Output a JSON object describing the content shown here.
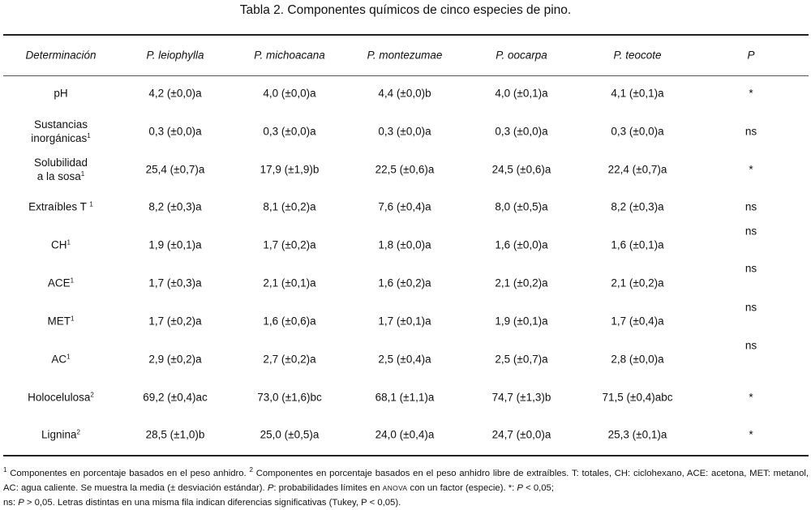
{
  "title": "Tabla 2. Componentes químicos de cinco especies de pino.",
  "headers": [
    "Determinación",
    "P. leiophylla",
    "P. michoacana",
    "P. montezumae",
    "P. oocarpa",
    "P. teocote",
    "P"
  ],
  "rows": [
    {
      "label": [
        "pH"
      ],
      "sup": "",
      "values": [
        "4,2 (±0,0)a",
        "4,0 (±0,0)a",
        "4,4 (±0,0)b",
        "4,0 (±0,1)a",
        "4,1 (±0,1)a"
      ],
      "p": "*"
    },
    {
      "label": [
        "Sustancias",
        "inorgánicas"
      ],
      "sup": "1",
      "values": [
        "0,3 (±0,0)a",
        "0,3 (±0,0)a",
        "0,3 (±0,0)a",
        "0,3 (±0,0)a",
        "0,3 (±0,0)a"
      ],
      "p": "ns"
    },
    {
      "label": [
        "Solubilidad",
        "a la sosa"
      ],
      "sup": "1",
      "values": [
        "25,4 (±0,7)a",
        "17,9 (±1,9)b",
        "22,5 (±0,6)a",
        "24,5 (±0,6)a",
        "22,4 (±0,7)a"
      ],
      "p": "*"
    },
    {
      "label": [
        "Extraíbles T "
      ],
      "sup": "1",
      "values": [
        "8,2 (±0,3)a",
        "8,1 (±0,2)a",
        "7,6 (±0,4)a",
        "8,0 (±0,5)a",
        "8,2 (±0,3)a"
      ],
      "p": "ns"
    },
    {
      "label": [
        "CH"
      ],
      "sup": "1",
      "values": [
        "1,9 (±0,1)a",
        "1,7 (±0,2)a",
        "1,8 (±0,0)a",
        "1,6 (±0,0)a",
        "1,6 (±0,1)a"
      ],
      "p": "ns"
    },
    {
      "label": [
        "ACE"
      ],
      "sup": "1",
      "values": [
        "1,7 (±0,3)a",
        "2,1 (±0,1)a",
        "1,6 (±0,2)a",
        "2,1 (±0,2)a",
        "2,1 (±0,2)a"
      ],
      "p": "ns"
    },
    {
      "label": [
        "MET"
      ],
      "sup": "1",
      "values": [
        "1,7 (±0,2)a",
        "1,6 (±0,6)a",
        "1,7 (±0,1)a",
        "1,9 (±0,1)a",
        "1,7 (±0,4)a"
      ],
      "p": "ns"
    },
    {
      "label": [
        "AC"
      ],
      "sup": "1",
      "values": [
        "2,9 (±0,2)a",
        "2,7 (±0,2)a",
        "2,5 (±0,4)a",
        "2,5 (±0,7)a",
        "2,8 (±0,0)a"
      ],
      "p": "ns"
    },
    {
      "label": [
        "Holocelulosa"
      ],
      "sup": "2",
      "values": [
        "69,2 (±0,4)ac",
        "73,0 (±1,6)bc",
        "68,1 (±1,1)a",
        "74,7 (±1,3)b",
        "71,5 (±0,4)abc"
      ],
      "p": "*"
    },
    {
      "label": [
        "Lignina"
      ],
      "sup": "2",
      "values": [
        "28,5 (±1,0)b",
        "25,0 (±0,5)a",
        "24,0 (±0,4)a",
        "24,7 (±0,0)a",
        "25,3 (±0,1)a"
      ],
      "p": "*"
    }
  ],
  "footnote": {
    "s1": "1",
    "t1": " Componentes en porcentaje basados en el peso anhidro. ",
    "s2": "2",
    "t2": " Componentes en porcentaje basados en el peso anhidro libre de extraíbles. T: totales, CH: ciclohexano, ACE: acetona, MET: metanol, AC: agua caliente. Se muestra la media (± desviación estándar). ",
    "p1": "P",
    "t3": ": probabilidades límites en ",
    "anova": "ANOVA",
    "t4": " con un factor (especie). *: ",
    "p2": "P",
    "t5": " < 0,05;",
    "t6": "ns: ",
    "p3": "P",
    "t7": " > 0,05. Letras distintas en una misma fila indican diferencias significativas (Tukey, P < 0,05)."
  }
}
